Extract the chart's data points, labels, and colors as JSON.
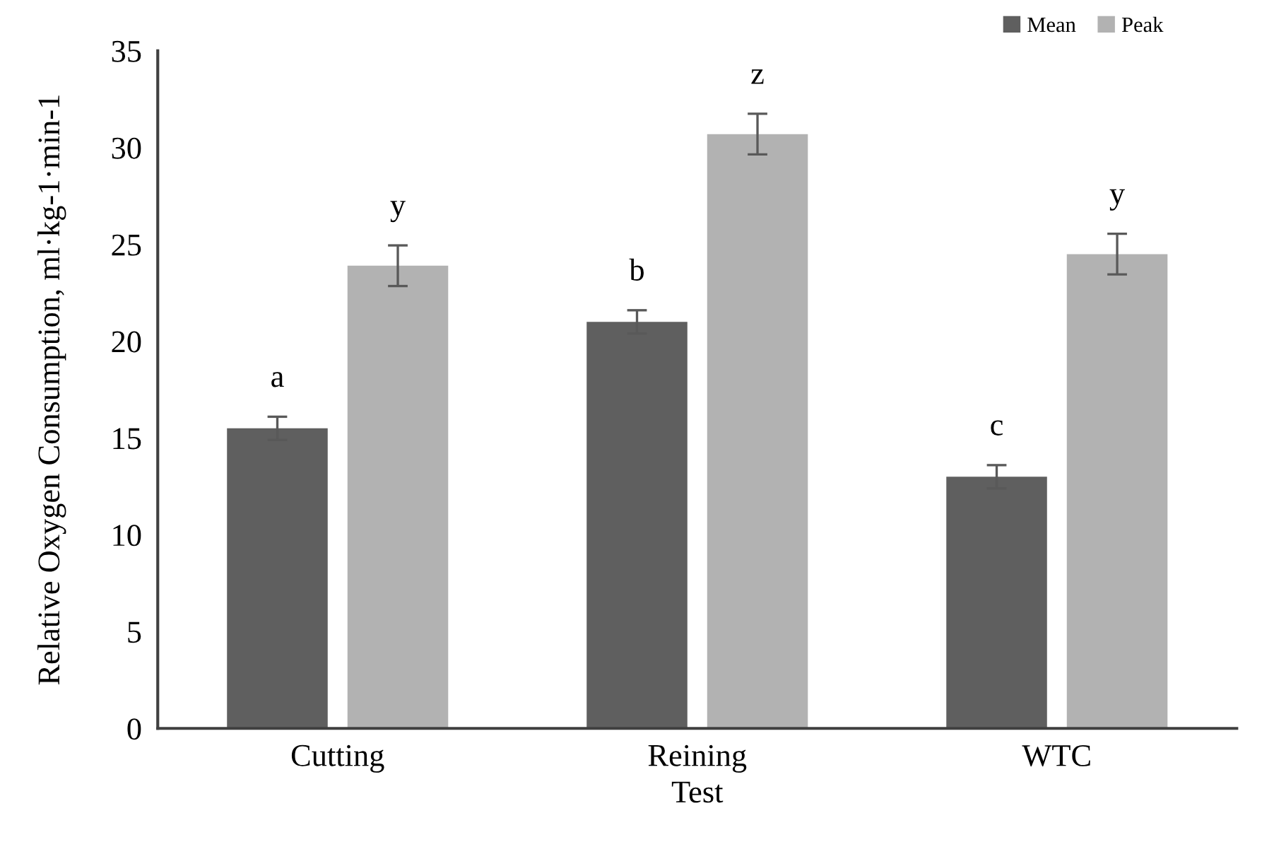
{
  "chart_data": {
    "type": "bar",
    "xlabel": "Test",
    "ylabel": "Relative Oxygen Consumption, ml·kg-1·min-1",
    "categories": [
      "Cutting",
      "Reining",
      "WTC"
    ],
    "series": [
      {
        "name": "Mean",
        "color": "#5f5f5f",
        "values": [
          15.5,
          21.0,
          13.0
        ],
        "errors": [
          0.6,
          0.6,
          0.6
        ]
      },
      {
        "name": "Peak",
        "color": "#b2b2b2",
        "values": [
          23.9,
          30.7,
          24.5
        ],
        "errors": [
          1.05,
          1.05,
          1.05
        ]
      }
    ],
    "annotations": [
      "a",
      "y",
      "b",
      "z",
      "c",
      "y"
    ],
    "ylim": [
      0,
      35
    ],
    "yticks": [
      0,
      5,
      10,
      15,
      20,
      25,
      30,
      35
    ],
    "grid": false,
    "legend": "top right"
  }
}
